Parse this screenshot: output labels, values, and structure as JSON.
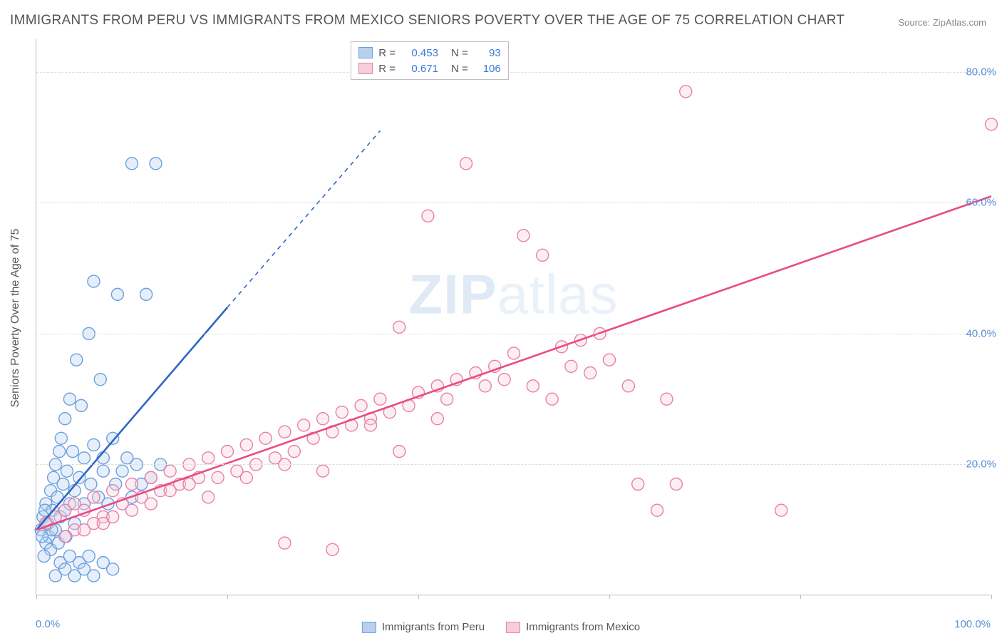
{
  "title": "IMMIGRANTS FROM PERU VS IMMIGRANTS FROM MEXICO SENIORS POVERTY OVER THE AGE OF 75 CORRELATION CHART",
  "source": "Source: ZipAtlas.com",
  "watermark_a": "ZIP",
  "watermark_b": "atlas",
  "ylabel": "Seniors Poverty Over the Age of 75",
  "chart": {
    "type": "scatter",
    "xlim": [
      0,
      100
    ],
    "ylim": [
      0,
      85
    ],
    "x_ticks": [
      0,
      20,
      40,
      60,
      80,
      100
    ],
    "x_tick_labels_shown": {
      "0": "0.0%",
      "100": "100.0%"
    },
    "y_ticks": [
      20,
      40,
      60,
      80
    ],
    "y_tick_labels": {
      "20": "20.0%",
      "40": "40.0%",
      "60": "60.0%",
      "80": "80.0%"
    },
    "grid_color": "#dcdcdc",
    "background_color": "#ffffff",
    "series": [
      {
        "name": "Immigrants from Peru",
        "color_fill": "#b8d0ee",
        "color_stroke": "#6a9fe0",
        "trend_color": "#2f66c4",
        "r": 0.453,
        "n": 93,
        "trend_line": {
          "x1": 0,
          "y1": 10,
          "x2": 20,
          "y2": 44,
          "solid_until_x": 20,
          "dash_to_x": 36,
          "dash_to_y": 71
        },
        "points": [
          [
            0.5,
            10
          ],
          [
            0.7,
            12
          ],
          [
            1,
            11
          ],
          [
            1,
            14
          ],
          [
            1.3,
            9
          ],
          [
            1.5,
            16
          ],
          [
            1.7,
            13
          ],
          [
            1.8,
            18
          ],
          [
            2,
            10
          ],
          [
            2,
            20
          ],
          [
            2.2,
            15
          ],
          [
            2.4,
            22
          ],
          [
            2.5,
            12
          ],
          [
            2.6,
            24
          ],
          [
            2.8,
            17
          ],
          [
            3,
            13
          ],
          [
            3,
            27
          ],
          [
            3.2,
            19
          ],
          [
            3.5,
            14
          ],
          [
            3.5,
            30
          ],
          [
            3.8,
            22
          ],
          [
            4,
            11
          ],
          [
            4,
            16
          ],
          [
            4.2,
            36
          ],
          [
            4.5,
            18
          ],
          [
            4.7,
            29
          ],
          [
            5,
            14
          ],
          [
            5,
            21
          ],
          [
            5.5,
            40
          ],
          [
            5.7,
            17
          ],
          [
            6,
            23
          ],
          [
            6,
            48
          ],
          [
            6.5,
            15
          ],
          [
            6.7,
            33
          ],
          [
            7,
            19
          ],
          [
            7,
            21
          ],
          [
            7.5,
            14
          ],
          [
            8,
            24
          ],
          [
            8.3,
            17
          ],
          [
            8.5,
            46
          ],
          [
            9,
            19
          ],
          [
            9.5,
            21
          ],
          [
            10,
            15
          ],
          [
            10,
            66
          ],
          [
            10.5,
            20
          ],
          [
            11,
            17
          ],
          [
            11.5,
            46
          ],
          [
            12,
            18
          ],
          [
            12.5,
            66
          ],
          [
            13,
            20
          ],
          [
            2,
            3
          ],
          [
            2.5,
            5
          ],
          [
            3,
            4
          ],
          [
            3.5,
            6
          ],
          [
            4,
            3
          ],
          [
            4.5,
            5
          ],
          [
            5,
            4
          ],
          [
            5.5,
            6
          ],
          [
            6,
            3
          ],
          [
            7,
            5
          ],
          [
            8,
            4
          ],
          [
            1,
            8
          ],
          [
            1.5,
            7
          ],
          [
            0.8,
            6
          ],
          [
            0.6,
            9
          ],
          [
            2.3,
            8
          ],
          [
            3.1,
            9
          ],
          [
            1.2,
            11
          ],
          [
            0.9,
            13
          ],
          [
            1.6,
            10
          ]
        ]
      },
      {
        "name": "Immigrants from Mexico",
        "color_fill": "#f6cdd9",
        "color_stroke": "#e97faa",
        "trend_color": "#e94b82",
        "r": 0.671,
        "n": 106,
        "trend_line": {
          "x1": 0,
          "y1": 10,
          "x2": 100,
          "y2": 61
        },
        "points": [
          [
            1,
            11
          ],
          [
            2,
            12
          ],
          [
            3,
            13
          ],
          [
            4,
            14
          ],
          [
            5,
            13
          ],
          [
            6,
            15
          ],
          [
            7,
            12
          ],
          [
            8,
            16
          ],
          [
            9,
            14
          ],
          [
            10,
            17
          ],
          [
            11,
            15
          ],
          [
            12,
            18
          ],
          [
            13,
            16
          ],
          [
            14,
            19
          ],
          [
            15,
            17
          ],
          [
            16,
            20
          ],
          [
            17,
            18
          ],
          [
            18,
            21
          ],
          [
            19,
            18
          ],
          [
            20,
            22
          ],
          [
            21,
            19
          ],
          [
            22,
            23
          ],
          [
            23,
            20
          ],
          [
            24,
            24
          ],
          [
            25,
            21
          ],
          [
            26,
            25
          ],
          [
            27,
            22
          ],
          [
            28,
            26
          ],
          [
            29,
            24
          ],
          [
            30,
            27
          ],
          [
            31,
            25
          ],
          [
            32,
            28
          ],
          [
            33,
            26
          ],
          [
            34,
            29
          ],
          [
            35,
            27
          ],
          [
            36,
            30
          ],
          [
            37,
            28
          ],
          [
            38,
            41
          ],
          [
            39,
            29
          ],
          [
            40,
            31
          ],
          [
            41,
            58
          ],
          [
            42,
            32
          ],
          [
            43,
            30
          ],
          [
            44,
            33
          ],
          [
            45,
            66
          ],
          [
            46,
            34
          ],
          [
            47,
            32
          ],
          [
            48,
            35
          ],
          [
            49,
            33
          ],
          [
            50,
            37
          ],
          [
            51,
            55
          ],
          [
            52,
            32
          ],
          [
            53,
            52
          ],
          [
            54,
            30
          ],
          [
            55,
            38
          ],
          [
            56,
            35
          ],
          [
            57,
            39
          ],
          [
            58,
            34
          ],
          [
            59,
            40
          ],
          [
            60,
            36
          ],
          [
            62,
            32
          ],
          [
            63,
            17
          ],
          [
            65,
            13
          ],
          [
            66,
            30
          ],
          [
            67,
            17
          ],
          [
            68,
            77
          ],
          [
            78,
            13
          ],
          [
            100,
            72
          ],
          [
            14,
            16
          ],
          [
            16,
            17
          ],
          [
            18,
            15
          ],
          [
            22,
            18
          ],
          [
            26,
            20
          ],
          [
            30,
            19
          ],
          [
            35,
            26
          ],
          [
            38,
            22
          ],
          [
            42,
            27
          ],
          [
            31,
            7
          ],
          [
            26,
            8
          ],
          [
            4,
            10
          ],
          [
            6,
            11
          ],
          [
            8,
            12
          ],
          [
            10,
            13
          ],
          [
            12,
            14
          ],
          [
            3,
            9
          ],
          [
            5,
            10
          ],
          [
            7,
            11
          ]
        ]
      }
    ]
  },
  "legend_top": {
    "rows": [
      {
        "swatch_fill": "#b8d0ee",
        "swatch_stroke": "#6a9fe0",
        "r_label": "R =",
        "r_val": "0.453",
        "n_label": "N =",
        "n_val": "93"
      },
      {
        "swatch_fill": "#f6cdd9",
        "swatch_stroke": "#e97faa",
        "r_label": "R =",
        "r_val": "0.671",
        "n_label": "N =",
        "n_val": "106"
      }
    ]
  },
  "legend_bottom": {
    "items": [
      {
        "swatch_fill": "#b8d0ee",
        "swatch_stroke": "#6a9fe0",
        "label": "Immigrants from Peru"
      },
      {
        "swatch_fill": "#f6cdd9",
        "swatch_stroke": "#e97faa",
        "label": "Immigrants from Mexico"
      }
    ]
  }
}
